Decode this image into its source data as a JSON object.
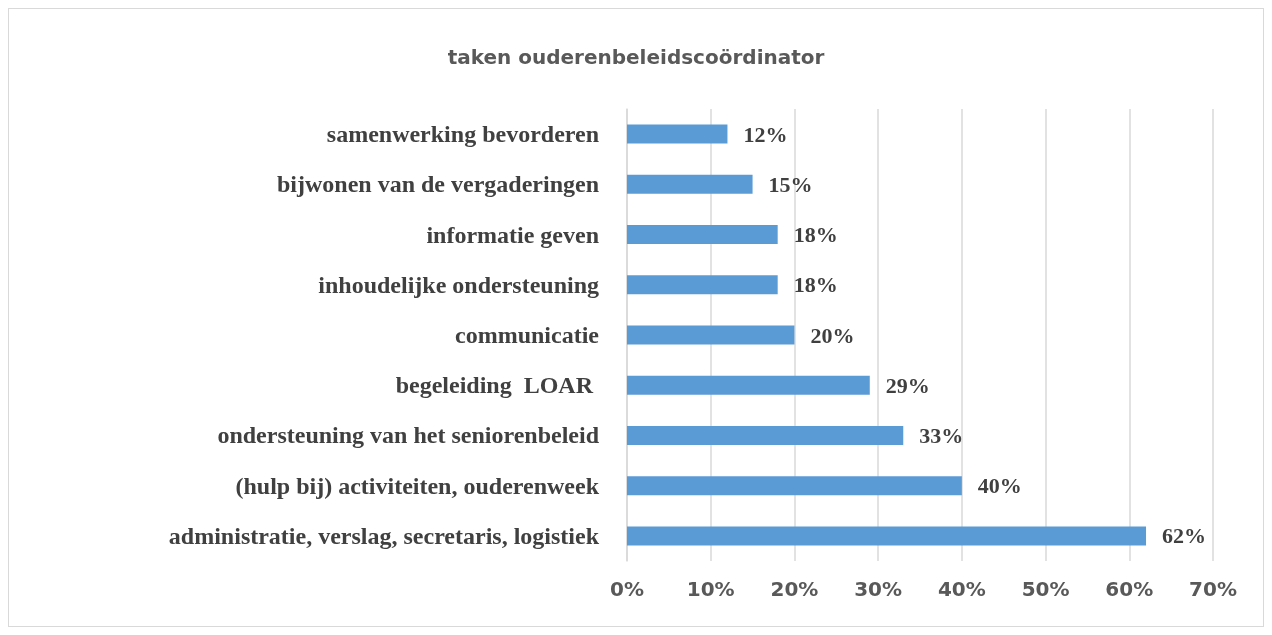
{
  "chart_data": {
    "type": "bar",
    "orientation": "horizontal",
    "title": "taken ouderenbeleidscoördinator",
    "categories": [
      "samenwerking bevorderen",
      "bijwonen van de vergaderingen",
      "informatie geven",
      "inhoudelijke ondersteuning",
      "communicatie",
      "begeleiding  LOAR ",
      "ondersteuning van het seniorenbeleid",
      "(hulp bij) activiteiten, ouderenweek",
      "administratie, verslag, secretaris, logistiek"
    ],
    "values": [
      12,
      15,
      18,
      18,
      20,
      29,
      33,
      40,
      62
    ],
    "value_labels": [
      "12%",
      "15%",
      "18%",
      "18%",
      "20%",
      "29%",
      "33%",
      "40%",
      "62%"
    ],
    "color": "#5b9bd5",
    "xlim": [
      0,
      70
    ],
    "xticks": [
      {
        "value": 0,
        "label": "0%"
      },
      {
        "value": 10,
        "label": "10%"
      },
      {
        "value": 20,
        "label": "20%"
      },
      {
        "value": 30,
        "label": "30%"
      },
      {
        "value": 40,
        "label": "40%"
      },
      {
        "value": 50,
        "label": "50%"
      },
      {
        "value": 60,
        "label": "60%"
      },
      {
        "value": 70,
        "label": "70%"
      }
    ],
    "grid": "x"
  }
}
